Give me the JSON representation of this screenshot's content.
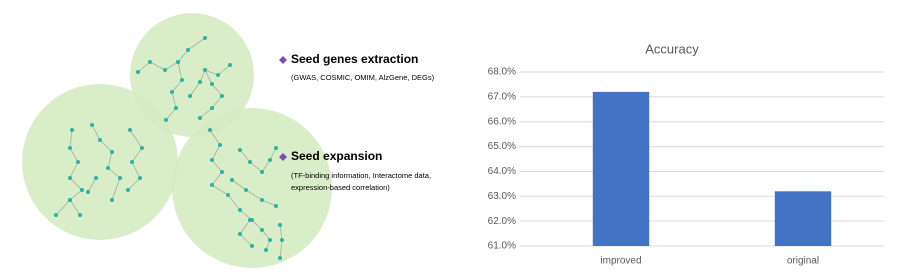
{
  "diagram": {
    "steps": [
      {
        "title": "Seed genes extraction",
        "detail": [
          "(GWAS, COSMIC, OMIM, AlzGene, DEGs)"
        ]
      },
      {
        "title": "Seed expansion",
        "detail": [
          "(TF-binding information, Interactome data,",
          "expression-based correlation)"
        ]
      }
    ]
  },
  "chart_data": {
    "type": "bar",
    "title": "Accuracy",
    "categories": [
      "improved",
      "original"
    ],
    "values": [
      67.2,
      63.2
    ],
    "color": "#4472c4",
    "ylim": [
      61,
      68
    ],
    "yticks": [
      {
        "value": 61,
        "label": "61.0%"
      },
      {
        "value": 62,
        "label": "62.0%"
      },
      {
        "value": 63,
        "label": "63.0%"
      },
      {
        "value": 64,
        "label": "64.0%"
      },
      {
        "value": 65,
        "label": "65.0%"
      },
      {
        "value": 66,
        "label": "66.0%"
      },
      {
        "value": 67,
        "label": "67.0%"
      },
      {
        "value": 68,
        "label": "68.0%"
      }
    ],
    "grid": true
  }
}
